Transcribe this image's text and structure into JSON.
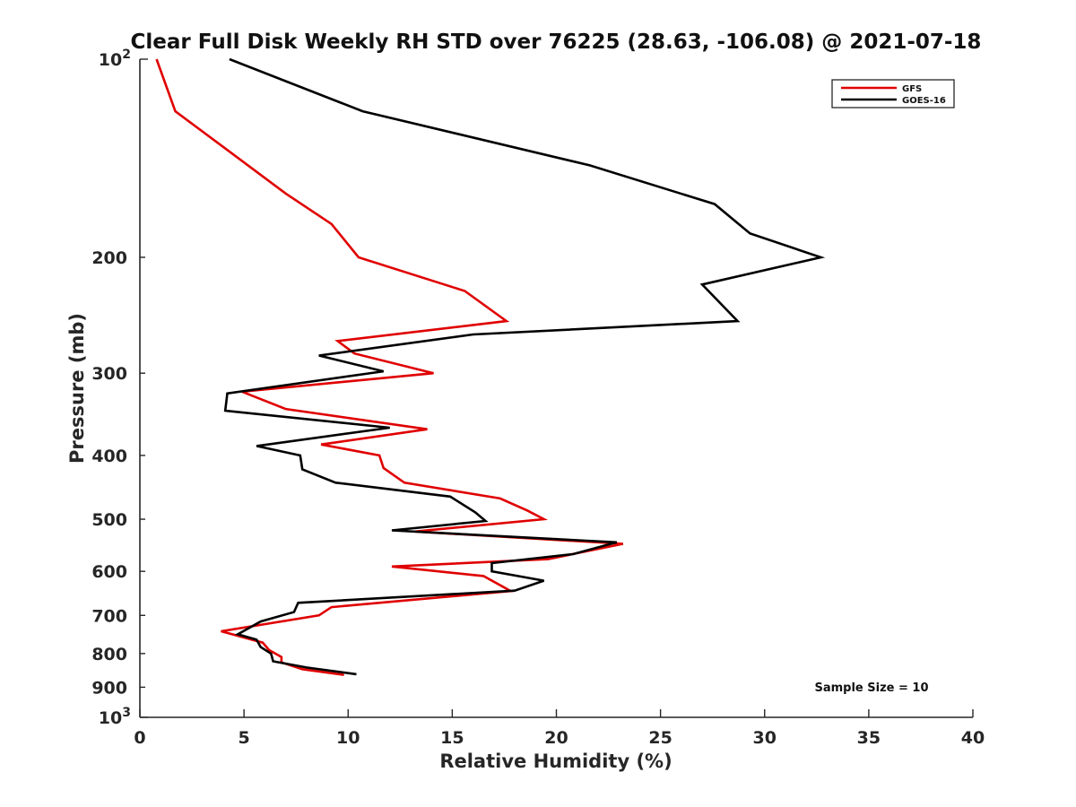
{
  "chart_data": {
    "type": "line",
    "title": "Clear Full Disk Weekly RH STD over 76225 (28.63, -106.08) @ 2021-07-18",
    "xlabel": "Relative Humidity (%)",
    "ylabel": "Pressure (mb)",
    "xlim": [
      0,
      40
    ],
    "ylim": [
      100,
      1000
    ],
    "y_scale": "log",
    "y_reversed": true,
    "x_ticks": [
      0,
      5,
      10,
      15,
      20,
      25,
      30,
      35,
      40
    ],
    "x_tick_labels": [
      "0",
      "5",
      "10",
      "15",
      "20",
      "25",
      "30",
      "35",
      "40"
    ],
    "y_ticks": [
      200,
      300,
      400,
      500,
      600,
      700,
      800,
      900
    ],
    "y_tick_labels": [
      "200",
      "300",
      "400",
      "500",
      "600",
      "700",
      "800",
      "900"
    ],
    "y_top_label": {
      "base": "10",
      "exp": "2"
    },
    "y_bottom_label": {
      "base": "10",
      "exp": "3"
    },
    "grid": false,
    "legend_position": "top-right",
    "annotation": "Sample Size = 10",
    "series": [
      {
        "name": "GFS",
        "color": "#e00000",
        "points": [
          [
            0.8,
            100
          ],
          [
            1.7,
            120
          ],
          [
            7.0,
            160
          ],
          [
            9.2,
            178
          ],
          [
            10.5,
            200
          ],
          [
            15.6,
            225
          ],
          [
            17.6,
            250
          ],
          [
            9.5,
            268
          ],
          [
            10.3,
            280
          ],
          [
            14.1,
            300
          ],
          [
            4.9,
            320
          ],
          [
            7.0,
            340
          ],
          [
            13.8,
            365
          ],
          [
            8.7,
            385
          ],
          [
            11.5,
            400
          ],
          [
            11.7,
            418
          ],
          [
            12.7,
            440
          ],
          [
            17.3,
            465
          ],
          [
            18.6,
            485
          ],
          [
            19.4,
            500
          ],
          [
            13.2,
            522
          ],
          [
            23.2,
            545
          ],
          [
            19.6,
            575
          ],
          [
            12.1,
            590
          ],
          [
            16.5,
            610
          ],
          [
            17.5,
            635
          ],
          [
            17.8,
            643
          ],
          [
            9.2,
            680
          ],
          [
            8.6,
            700
          ],
          [
            3.9,
            740
          ],
          [
            5.9,
            770
          ],
          [
            6.2,
            790
          ],
          [
            6.8,
            810
          ],
          [
            6.8,
            825
          ],
          [
            7.8,
            845
          ],
          [
            9.8,
            862
          ]
        ]
      },
      {
        "name": "GOES-16",
        "color": "#000000",
        "points": [
          [
            4.3,
            100
          ],
          [
            10.7,
            120
          ],
          [
            21.6,
            145
          ],
          [
            27.6,
            166
          ],
          [
            29.3,
            184
          ],
          [
            32.7,
            200
          ],
          [
            27.0,
            220
          ],
          [
            28.7,
            250
          ],
          [
            16.0,
            262
          ],
          [
            8.6,
            282
          ],
          [
            11.7,
            298
          ],
          [
            4.2,
            322
          ],
          [
            4.1,
            342
          ],
          [
            12.0,
            363
          ],
          [
            5.6,
            387
          ],
          [
            7.7,
            400
          ],
          [
            7.8,
            420
          ],
          [
            9.4,
            440
          ],
          [
            14.9,
            462
          ],
          [
            16.1,
            488
          ],
          [
            16.6,
            503
          ],
          [
            12.1,
            520
          ],
          [
            22.9,
            542
          ],
          [
            20.8,
            565
          ],
          [
            16.9,
            583
          ],
          [
            16.9,
            600
          ],
          [
            19.4,
            620
          ],
          [
            18.0,
            642
          ],
          [
            7.6,
            670
          ],
          [
            7.4,
            692
          ],
          [
            5.8,
            715
          ],
          [
            4.7,
            748
          ],
          [
            5.6,
            762
          ],
          [
            5.8,
            782
          ],
          [
            6.3,
            800
          ],
          [
            6.4,
            822
          ],
          [
            8.0,
            840
          ],
          [
            10.4,
            860
          ]
        ]
      }
    ]
  }
}
